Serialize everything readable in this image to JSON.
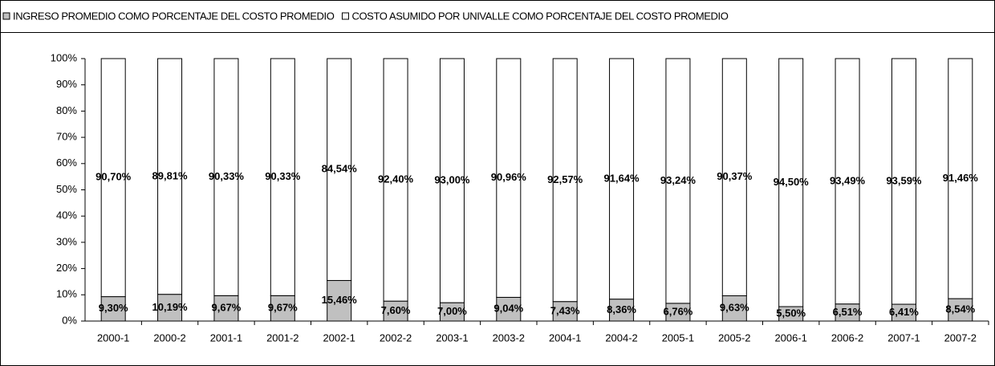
{
  "chart_data": {
    "type": "stacked-bar-100",
    "categories": [
      "2000-1",
      "2000-2",
      "2001-1",
      "2001-2",
      "2002-1",
      "2002-2",
      "2003-1",
      "2003-2",
      "2004-1",
      "2004-2",
      "2005-1",
      "2005-2",
      "2006-1",
      "2006-2",
      "2007-1",
      "2007-2"
    ],
    "series": [
      {
        "name": "INGRESO PROMEDIO  COMO PORCENTAJE DEL COSTO PROMEDIO",
        "color": "#c0c0c0",
        "values": [
          9.3,
          10.19,
          9.67,
          9.67,
          15.46,
          7.6,
          7.0,
          9.04,
          7.43,
          8.36,
          6.76,
          9.63,
          5.5,
          6.51,
          6.41,
          8.54
        ],
        "value_labels": [
          "9,30%",
          "10,19%",
          "9,67%",
          "9,67%",
          "15,46%",
          "7,60%",
          "7,00%",
          "9,04%",
          "7,43%",
          "8,36%",
          "6,76%",
          "9,63%",
          "5,50%",
          "6,51%",
          "6,41%",
          "8,54%"
        ]
      },
      {
        "name": "COSTO  ASUMIDO POR UNIVALLE COMO PORCENTAJE DEL COSTO PROMEDIO",
        "color": "#ffffff",
        "values": [
          90.7,
          89.81,
          90.33,
          90.33,
          84.54,
          92.4,
          93.0,
          90.96,
          92.57,
          91.64,
          93.24,
          90.37,
          94.5,
          93.49,
          93.59,
          91.46
        ],
        "value_labels": [
          "90,70%",
          "89,81%",
          "90,33%",
          "90,33%",
          "84,54%",
          "92,40%",
          "93,00%",
          "90,96%",
          "92,57%",
          "91,64%",
          "93,24%",
          "90,37%",
          "94,50%",
          "93,49%",
          "93,59%",
          "91,46%"
        ]
      }
    ],
    "ylim": [
      0,
      100
    ],
    "yticks": [
      {
        "value": 0,
        "label": "0%"
      },
      {
        "value": 10,
        "label": "10%"
      },
      {
        "value": 20,
        "label": "20%"
      },
      {
        "value": 30,
        "label": "30%"
      },
      {
        "value": 40,
        "label": "40%"
      },
      {
        "value": 50,
        "label": "50%"
      },
      {
        "value": 60,
        "label": "60%"
      },
      {
        "value": 70,
        "label": "70%"
      },
      {
        "value": 80,
        "label": "80%"
      },
      {
        "value": 90,
        "label": "90%"
      },
      {
        "value": 100,
        "label": "100%"
      }
    ],
    "legend": "top"
  }
}
